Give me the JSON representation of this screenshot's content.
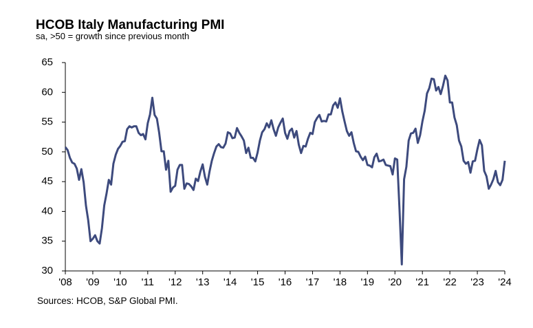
{
  "chart_data": {
    "type": "line",
    "title": "HCOB Italy Manufacturing PMI",
    "subtitle": "sa, >50 = growth since previous month",
    "source": "Sources: HCOB, S&P Global PMI.",
    "categories": [
      "'08",
      null,
      null,
      null,
      null,
      null,
      null,
      null,
      null,
      null,
      null,
      null,
      "'09",
      null,
      null,
      null,
      null,
      null,
      null,
      null,
      null,
      null,
      null,
      null,
      "'10",
      null,
      null,
      null,
      null,
      null,
      null,
      null,
      null,
      null,
      null,
      null,
      "'11",
      null,
      null,
      null,
      null,
      null,
      null,
      null,
      null,
      null,
      null,
      null,
      "'12",
      null,
      null,
      null,
      null,
      null,
      null,
      null,
      null,
      null,
      null,
      null,
      "'13",
      null,
      null,
      null,
      null,
      null,
      null,
      null,
      null,
      null,
      null,
      null,
      "'14",
      null,
      null,
      null,
      null,
      null,
      null,
      null,
      null,
      null,
      null,
      null,
      "'15",
      null,
      null,
      null,
      null,
      null,
      null,
      null,
      null,
      null,
      null,
      null,
      "'16",
      null,
      null,
      null,
      null,
      null,
      null,
      null,
      null,
      null,
      null,
      null,
      "'17",
      null,
      null,
      null,
      null,
      null,
      null,
      null,
      null,
      null,
      null,
      null,
      "'18",
      null,
      null,
      null,
      null,
      null,
      null,
      null,
      null,
      null,
      null,
      null,
      "'19",
      null,
      null,
      null,
      null,
      null,
      null,
      null,
      null,
      null,
      null,
      null,
      "'20",
      null,
      null,
      null,
      null,
      null,
      null,
      null,
      null,
      null,
      null,
      null,
      "'21",
      null,
      null,
      null,
      null,
      null,
      null,
      null,
      null,
      null,
      null,
      null,
      "'22",
      null,
      null,
      null,
      null,
      null,
      null,
      null,
      null,
      null,
      null,
      null,
      "'23",
      null,
      null,
      null,
      null,
      null,
      null,
      null,
      null,
      null,
      null,
      null,
      "'24"
    ],
    "series": [
      {
        "name": "Italy Manufacturing PMI",
        "color": "#3d4a7d",
        "values": [
          50.8,
          50.3,
          49.0,
          48.2,
          48.0,
          47.2,
          45.3,
          47.1,
          44.9,
          41.0,
          38.5,
          35.0,
          35.4,
          36.0,
          35.0,
          34.6,
          37.2,
          41.0,
          43.0,
          45.3,
          44.5,
          48.0,
          49.5,
          50.5,
          51.0,
          51.7,
          51.8,
          53.8,
          54.3,
          54.1,
          54.3,
          54.3,
          53.2,
          52.8,
          53.0,
          52.1,
          54.8,
          56.3,
          59.1,
          56.2,
          55.6,
          53.2,
          50.1,
          50.1,
          47.0,
          48.5,
          43.3,
          44.0,
          44.3,
          47.0,
          47.8,
          47.8,
          43.8,
          44.7,
          44.6,
          44.2,
          43.6,
          45.5,
          45.1,
          46.7,
          47.9,
          45.8,
          44.5,
          46.7,
          48.5,
          49.8,
          50.9,
          51.3,
          50.8,
          50.7,
          51.4,
          53.3,
          53.1,
          52.3,
          52.4,
          54.0,
          53.2,
          52.6,
          51.9,
          49.8,
          50.7,
          49.0,
          49.0,
          48.4,
          49.9,
          51.9,
          53.3,
          53.8,
          54.8,
          54.1,
          55.3,
          53.8,
          52.7,
          54.1,
          54.9,
          55.6,
          53.2,
          52.2,
          53.5,
          53.9,
          52.4,
          53.5,
          51.2,
          49.8,
          51.0,
          50.9,
          52.2,
          53.2,
          53.0,
          55.0,
          55.7,
          56.2,
          55.1,
          55.2,
          55.1,
          56.3,
          56.3,
          57.8,
          58.3,
          57.4,
          59.0,
          56.8,
          55.1,
          53.5,
          52.7,
          53.3,
          51.5,
          50.1,
          50.0,
          49.2,
          48.6,
          49.2,
          47.8,
          47.7,
          47.4,
          49.1,
          49.7,
          48.4,
          48.5,
          48.7,
          47.8,
          47.7,
          47.6,
          46.2,
          48.9,
          48.7,
          40.3,
          31.1,
          45.4,
          47.5,
          51.9,
          53.1,
          53.2,
          53.9,
          51.5,
          52.8,
          55.1,
          56.9,
          59.8,
          60.7,
          62.3,
          62.2,
          60.3,
          60.9,
          59.7,
          61.1,
          62.8,
          62.0,
          58.3,
          58.3,
          55.8,
          54.5,
          51.9,
          50.9,
          48.5,
          48.0,
          48.3,
          46.5,
          48.4,
          48.5,
          50.4,
          52.0,
          51.1,
          46.8,
          45.9,
          43.8,
          44.5,
          45.4,
          46.8,
          44.9,
          44.4,
          45.3,
          48.5
        ]
      }
    ],
    "ylim": [
      30,
      65
    ],
    "yticks": [
      30,
      35,
      40,
      45,
      50,
      55,
      60,
      65
    ],
    "grid": false
  }
}
